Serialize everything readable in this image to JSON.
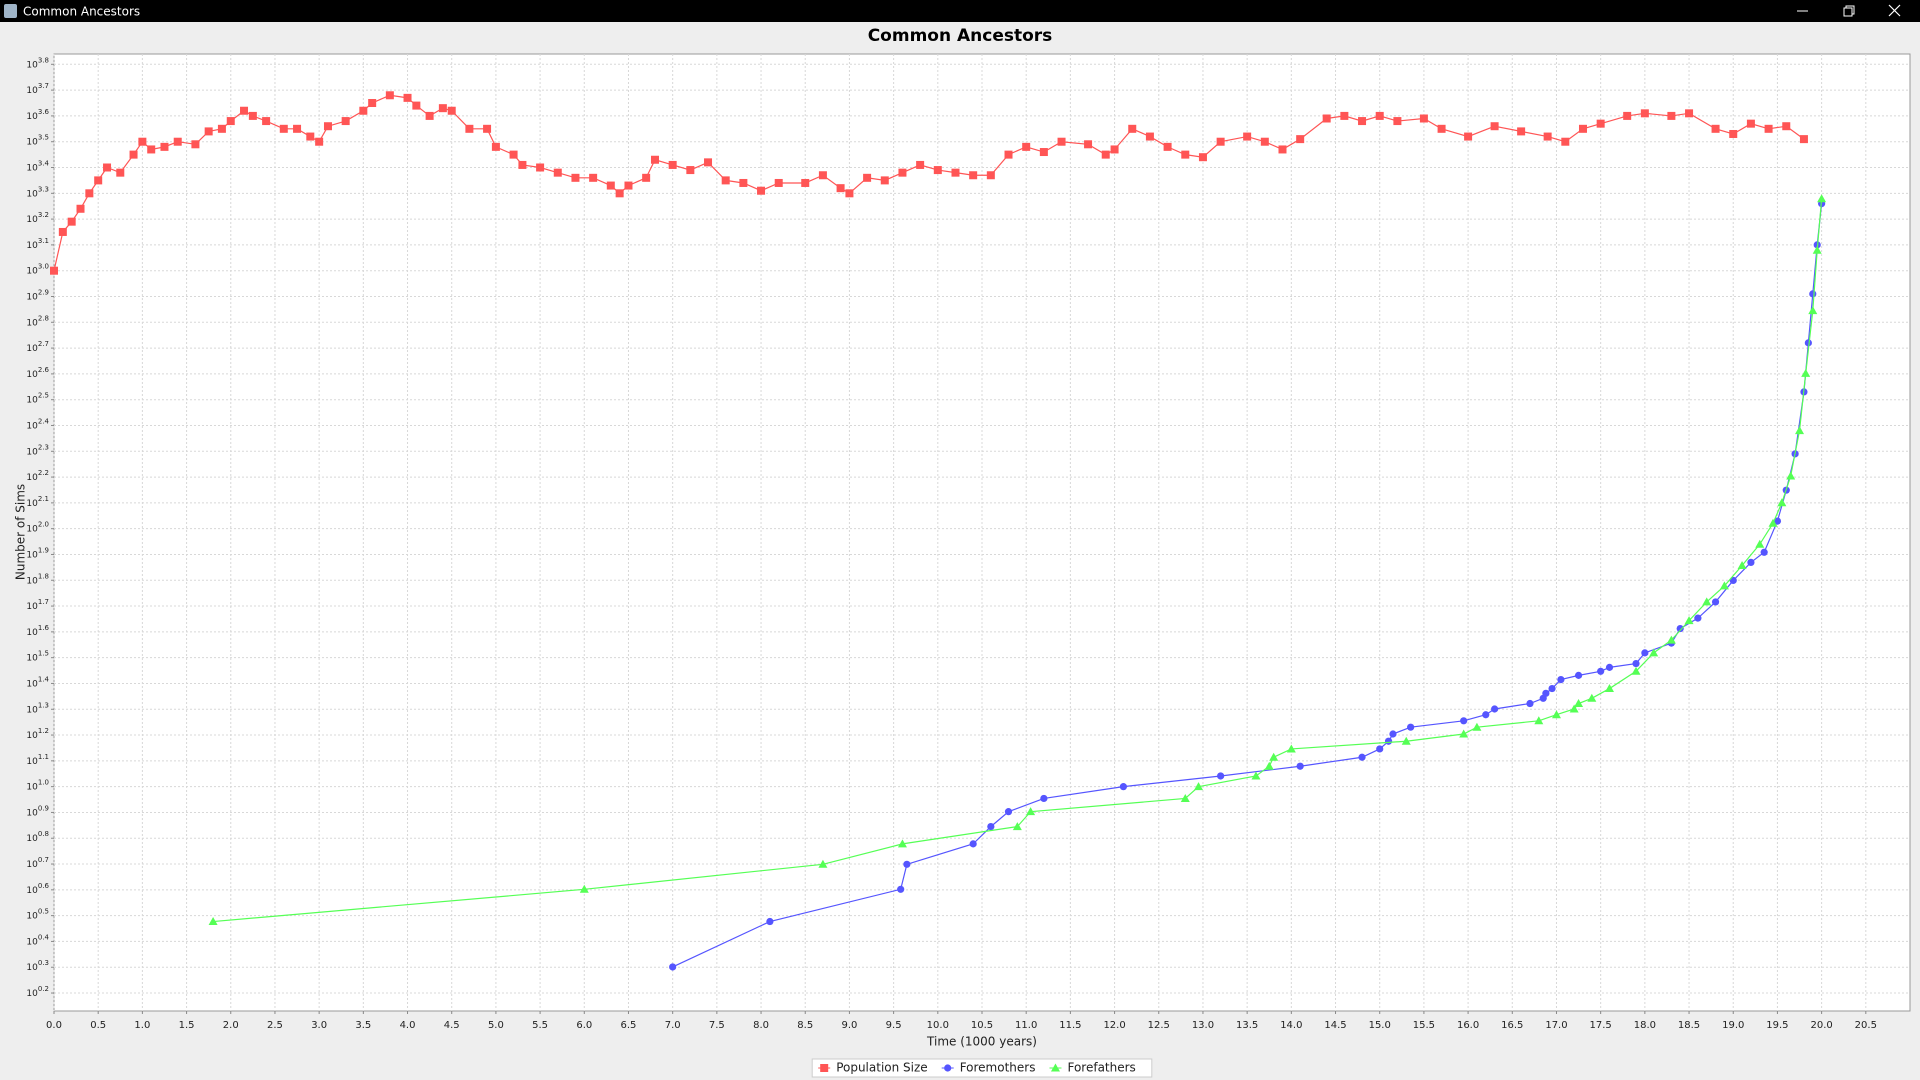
{
  "window_title": "Common Ancestors",
  "chart_data": {
    "type": "line",
    "title": "Common Ancestors",
    "x_label": "Time (1000 years)",
    "y_label": "Number of Sims",
    "yscale": "log",
    "grid": true,
    "legend": "bottom",
    "xlim": [
      0,
      21
    ],
    "xticks": [
      {
        "value": 0,
        "label": "0.0"
      },
      0.5,
      {
        "value": 1,
        "label": "1.0"
      },
      1.5,
      {
        "value": 2,
        "label": "2.0"
      },
      2.5,
      {
        "value": 3,
        "label": "3.0"
      },
      3.5,
      {
        "value": 4,
        "label": "4.0"
      },
      4.5,
      {
        "value": 5,
        "label": "5.0"
      },
      5.5,
      {
        "value": 6,
        "label": "6.0"
      },
      6.5,
      {
        "value": 7,
        "label": "7.0"
      },
      7.5,
      {
        "value": 8,
        "label": "8.0"
      },
      8.5,
      {
        "value": 9,
        "label": "9.0"
      },
      9.5,
      {
        "value": 10,
        "label": "10.0"
      },
      10.5,
      {
        "value": 11,
        "label": "11.0"
      },
      11.5,
      {
        "value": 12,
        "label": "12.0"
      },
      12.5,
      {
        "value": 13,
        "label": "13.0"
      },
      13.5,
      {
        "value": 14,
        "label": "14.0"
      },
      14.5,
      {
        "value": 15,
        "label": "15.0"
      },
      15.5,
      {
        "value": 16,
        "label": "16.0"
      },
      16.5,
      {
        "value": 17,
        "label": "17.0"
      },
      17.5,
      {
        "value": 18,
        "label": "18.0"
      },
      18.5,
      {
        "value": 19,
        "label": "19.0"
      },
      19.5,
      {
        "value": 20,
        "label": "20.0"
      },
      20.5
    ],
    "ylim": [
      1.35,
      6918
    ],
    "yticks": [
      {
        "value": 1.585,
        "label": "10^0.2"
      },
      {
        "value": 1.995,
        "label": "10^0.3"
      },
      {
        "value": 2.512,
        "label": "10^0.4"
      },
      {
        "value": 3.162,
        "label": "10^0.5"
      },
      {
        "value": 3.981,
        "label": "10^0.6"
      },
      {
        "value": 5.012,
        "label": "10^0.7"
      },
      {
        "value": 6.31,
        "label": "10^0.8"
      },
      {
        "value": 7.943,
        "label": "10^0.9"
      },
      {
        "value": 10,
        "label": "10^1.0"
      },
      {
        "value": 12.59,
        "label": "10^1.1"
      },
      {
        "value": 15.85,
        "label": "10^1.2"
      },
      {
        "value": 19.95,
        "label": "10^1.3"
      },
      {
        "value": 25.12,
        "label": "10^1.4"
      },
      {
        "value": 31.62,
        "label": "10^1.5"
      },
      {
        "value": 39.81,
        "label": "10^1.6"
      },
      {
        "value": 50.12,
        "label": "10^1.7"
      },
      {
        "value": 63.1,
        "label": "10^1.8"
      },
      {
        "value": 79.43,
        "label": "10^1.9"
      },
      {
        "value": 100,
        "label": "10^2.0"
      },
      {
        "value": 125.9,
        "label": "10^2.1"
      },
      {
        "value": 158.5,
        "label": "10^2.2"
      },
      {
        "value": 199.5,
        "label": "10^2.3"
      },
      {
        "value": 251.2,
        "label": "10^2.4"
      },
      {
        "value": 316.2,
        "label": "10^2.5"
      },
      {
        "value": 398.1,
        "label": "10^2.6"
      },
      {
        "value": 501.2,
        "label": "10^2.7"
      },
      {
        "value": 631,
        "label": "10^2.8"
      },
      {
        "value": 794.3,
        "label": "10^2.9"
      },
      {
        "value": 1000,
        "label": "10^3.0"
      },
      {
        "value": 1259,
        "label": "10^3.1"
      },
      {
        "value": 1585,
        "label": "10^3.2"
      },
      {
        "value": 1995,
        "label": "10^3.3"
      },
      {
        "value": 2512,
        "label": "10^3.4"
      },
      {
        "value": 3162,
        "label": "10^3.5"
      },
      {
        "value": 3981,
        "label": "10^3.6"
      },
      {
        "value": 5012,
        "label": "10^3.7"
      },
      {
        "value": 6310,
        "label": "10^3.8"
      }
    ],
    "series": [
      {
        "name": "Population Size",
        "color": "#ff5555",
        "marker": "square",
        "x": [
          0,
          0.1,
          0.2,
          0.3,
          0.4,
          0.5,
          0.6,
          0.75,
          0.9,
          1.0,
          1.1,
          1.25,
          1.4,
          1.6,
          1.75,
          1.9,
          2.0,
          2.15,
          2.25,
          2.4,
          2.6,
          2.75,
          2.9,
          3.0,
          3.1,
          3.3,
          3.5,
          3.6,
          3.8,
          4.0,
          4.1,
          4.25,
          4.4,
          4.5,
          4.7,
          4.9,
          5.0,
          5.2,
          5.3,
          5.5,
          5.7,
          5.9,
          6.1,
          6.3,
          6.4,
          6.5,
          6.7,
          6.8,
          7.0,
          7.2,
          7.4,
          7.6,
          7.8,
          8.0,
          8.2,
          8.5,
          8.7,
          8.9,
          9.0,
          9.2,
          9.4,
          9.6,
          9.8,
          10.0,
          10.2,
          10.4,
          10.6,
          10.8,
          11.0,
          11.2,
          11.4,
          11.7,
          11.9,
          12.0,
          12.2,
          12.4,
          12.6,
          12.8,
          13.0,
          13.2,
          13.5,
          13.7,
          13.9,
          14.1,
          14.4,
          14.6,
          14.8,
          15.0,
          15.2,
          15.5,
          15.7,
          16.0,
          16.3,
          16.6,
          16.9,
          17.1,
          17.3,
          17.5,
          17.8,
          18.0,
          18.3,
          18.5,
          18.8,
          19.0,
          19.2,
          19.4,
          19.6,
          19.8
        ],
        "values": [
          1000,
          1413,
          1549,
          1738,
          1995,
          2239,
          2512,
          2399,
          2818,
          3162,
          2951,
          3020,
          3162,
          3090,
          3467,
          3548,
          3802,
          4169,
          3981,
          3802,
          3548,
          3548,
          3311,
          3162,
          3631,
          3802,
          4169,
          4467,
          4786,
          4677,
          4365,
          3981,
          4266,
          4169,
          3548,
          3548,
          3020,
          2818,
          2570,
          2512,
          2399,
          2291,
          2291,
          2138,
          1995,
          2138,
          2291,
          2692,
          2570,
          2455,
          2630,
          2239,
          2188,
          2042,
          2188,
          2188,
          2344,
          2089,
          1995,
          2291,
          2239,
          2399,
          2570,
          2455,
          2399,
          2344,
          2344,
          2818,
          3020,
          2884,
          3162,
          3090,
          2818,
          2951,
          3548,
          3311,
          3020,
          2818,
          2754,
          3162,
          3311,
          3162,
          2951,
          3236,
          3890,
          3981,
          3802,
          3981,
          3802,
          3890,
          3548,
          3311,
          3631,
          3467,
          3311,
          3162,
          3548,
          3715,
          3981,
          4074,
          3981,
          4074,
          3548,
          3388,
          3715,
          3548,
          3631,
          3236
        ]
      },
      {
        "name": "Foremothers",
        "color": "#5555ff",
        "marker": "circle",
        "x": [
          7.0,
          8.1,
          9.58,
          9.65,
          10.4,
          10.6,
          10.8,
          11.2,
          12.1,
          13.2,
          14.1,
          14.8,
          15.0,
          15.1,
          15.15,
          15.35,
          15.95,
          16.2,
          16.3,
          16.7,
          16.85,
          16.88,
          16.95,
          17.05,
          17.25,
          17.5,
          17.6,
          17.9,
          18.0,
          18.3,
          18.4,
          18.6,
          18.8,
          19.0,
          19.2,
          19.35,
          19.5,
          19.6,
          19.7,
          19.8,
          19.85,
          19.9,
          19.95,
          20.0
        ],
        "values": [
          2,
          3,
          4,
          5,
          6,
          7,
          8,
          9,
          10,
          11,
          12,
          13,
          14,
          15,
          16,
          17,
          18,
          19,
          20,
          21,
          22,
          23,
          24,
          26,
          27,
          28,
          29,
          30,
          33,
          36,
          41,
          45,
          52,
          63,
          74,
          81,
          107,
          141,
          195,
          339,
          525,
          813,
          1259,
          1820
        ]
      },
      {
        "name": "Forefathers",
        "color": "#55ff55",
        "marker": "triangle",
        "x": [
          1.8,
          6.0,
          8.7,
          9.6,
          10.9,
          11.05,
          12.8,
          12.95,
          13.6,
          13.75,
          13.8,
          14.0,
          15.3,
          15.95,
          16.1,
          16.8,
          17.0,
          17.2,
          17.25,
          17.4,
          17.6,
          17.9,
          18.1,
          18.3,
          18.5,
          18.7,
          18.9,
          19.1,
          19.3,
          19.45,
          19.55,
          19.65,
          19.75,
          19.82,
          19.9,
          19.95,
          20.0
        ],
        "values": [
          3,
          4,
          5,
          6,
          7,
          8,
          9,
          10,
          11,
          12,
          13,
          14,
          15,
          16,
          17,
          18,
          19,
          20,
          21,
          22,
          24,
          28,
          33,
          37,
          44,
          52,
          60,
          72,
          87,
          105,
          126,
          160,
          240,
          400,
          700,
          1200,
          1900
        ]
      }
    ]
  }
}
